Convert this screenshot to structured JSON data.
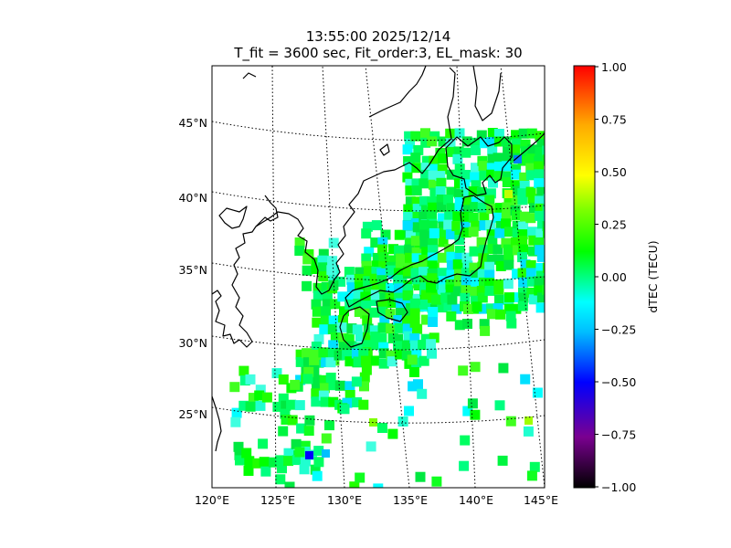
{
  "title": {
    "line1": "13:55:00 2025/12/14",
    "line2": "T_fit = 3600 sec, Fit_order:3, EL_mask: 30"
  },
  "map": {
    "projection": "conic",
    "lon_range": [
      120,
      145
    ],
    "lat_range": [
      20,
      49
    ],
    "lon_ticks": [
      "120°E",
      "125°E",
      "130°E",
      "135°E",
      "140°E",
      "145°E"
    ],
    "lat_ticks": [
      "25°N",
      "30°N",
      "35°N",
      "40°N",
      "45°N"
    ],
    "graticule": "dotted",
    "coastline_color": "#000000"
  },
  "colorbar": {
    "label": "dTEC (TECU)",
    "range": [
      -1.0,
      1.0
    ],
    "ticks": [
      "1.00",
      "0.75",
      "0.50",
      "0.25",
      "0.00",
      "−0.25",
      "−0.50",
      "−0.75",
      "−1.00"
    ],
    "colormap": "nipy_spectral-like",
    "stops": [
      "#000000",
      "#7a0090",
      "#0000ff",
      "#00bfff",
      "#00ffff",
      "#00ff7f",
      "#00ff00",
      "#7fff00",
      "#ffff00",
      "#ffaa00",
      "#ff0000"
    ]
  }
}
